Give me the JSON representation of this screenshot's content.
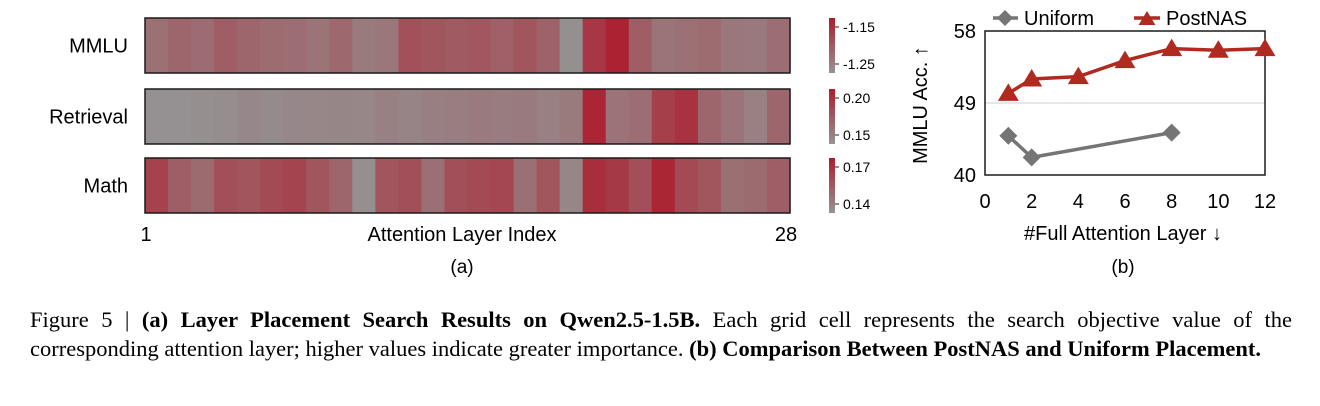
{
  "chart_data": [
    {
      "type": "heatmap",
      "panel_label": "(a)",
      "xlabel": "Attention Layer Index",
      "x_tick_labels": [
        "1",
        "28"
      ],
      "rows": [
        {
          "name": "MMLU",
          "colorbar_ticks": [
            "-1.15",
            "-1.25"
          ],
          "range": [
            -1.27,
            -1.13
          ],
          "values": [
            -1.228,
            -1.215,
            -1.223,
            -1.205,
            -1.215,
            -1.222,
            -1.225,
            -1.232,
            -1.218,
            -1.24,
            -1.235,
            -1.19,
            -1.195,
            -1.202,
            -1.198,
            -1.208,
            -1.195,
            -1.212,
            -1.265,
            -1.16,
            -1.135,
            -1.205,
            -1.232,
            -1.228,
            -1.222,
            -1.235,
            -1.238,
            -1.225
          ]
        },
        {
          "name": "Retrieval",
          "colorbar_ticks": [
            "0.20",
            "0.15"
          ],
          "range": [
            0.135,
            0.225
          ],
          "values": [
            0.138,
            0.138,
            0.139,
            0.14,
            0.144,
            0.142,
            0.144,
            0.145,
            0.146,
            0.145,
            0.15,
            0.147,
            0.151,
            0.152,
            0.155,
            0.153,
            0.154,
            0.15,
            0.155,
            0.22,
            0.16,
            0.165,
            0.2,
            0.21,
            0.17,
            0.16,
            0.15,
            0.17
          ]
        },
        {
          "name": "Math",
          "colorbar_ticks": [
            "0.17",
            "0.14"
          ],
          "range": [
            0.135,
            0.178
          ],
          "values": [
            0.165,
            0.155,
            0.15,
            0.16,
            0.158,
            0.162,
            0.164,
            0.158,
            0.152,
            0.137,
            0.158,
            0.16,
            0.148,
            0.16,
            0.162,
            0.163,
            0.148,
            0.158,
            0.14,
            0.172,
            0.168,
            0.16,
            0.175,
            0.162,
            0.158,
            0.148,
            0.15,
            0.155
          ]
        }
      ]
    },
    {
      "type": "line",
      "panel_label": "(b)",
      "xlabel": "#Full Attention Layer ↓",
      "ylabel": "MMLU Acc. ↑",
      "xlim": [
        0,
        12
      ],
      "ylim": [
        40,
        58
      ],
      "x_ticks": [
        0,
        2,
        4,
        6,
        8,
        10,
        12
      ],
      "y_ticks": [
        40,
        49,
        58
      ],
      "gridlines_y": [
        49,
        58
      ],
      "legend": "top",
      "series": [
        {
          "name": "Uniform",
          "color": "#757575",
          "marker": "diamond",
          "x": [
            1,
            2,
            8
          ],
          "y": [
            44.9,
            42.2,
            45.3
          ]
        },
        {
          "name": "PostNAS",
          "color": "#b02a20",
          "marker": "triangle",
          "x": [
            1,
            2,
            4,
            6,
            8,
            10,
            12
          ],
          "y": [
            50.2,
            52.0,
            52.3,
            54.3,
            55.8,
            55.6,
            55.8
          ]
        }
      ]
    }
  ],
  "caption": {
    "prefix": "Figure 5 | ",
    "part_a_title": "(a) Layer Placement Search Results on Qwen2.5-1.5B.",
    "part_a_text": " Each grid cell represents the search objective value of the corresponding attention layer; higher values indicate greater importance. ",
    "part_b_title": "(b) Comparison Between PostNAS and Uniform Placement."
  }
}
